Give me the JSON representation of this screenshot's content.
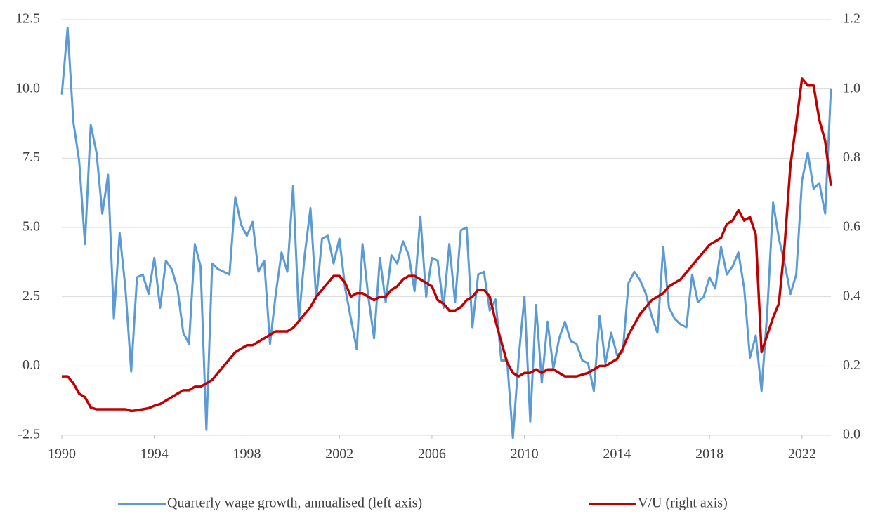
{
  "chart_data": {
    "type": "line",
    "x": [
      1990,
      1990.25,
      1990.5,
      1990.75,
      1991,
      1991.25,
      1991.5,
      1991.75,
      1992,
      1992.25,
      1992.5,
      1992.75,
      1993,
      1993.25,
      1993.5,
      1993.75,
      1994,
      1994.25,
      1994.5,
      1994.75,
      1995,
      1995.25,
      1995.5,
      1995.75,
      1996,
      1996.25,
      1996.5,
      1996.75,
      1997,
      1997.25,
      1997.5,
      1997.75,
      1998,
      1998.25,
      1998.5,
      1998.75,
      1999,
      1999.25,
      1999.5,
      1999.75,
      2000,
      2000.25,
      2000.5,
      2000.75,
      2001,
      2001.25,
      2001.5,
      2001.75,
      2002,
      2002.25,
      2002.5,
      2002.75,
      2003,
      2003.25,
      2003.5,
      2003.75,
      2004,
      2004.25,
      2004.5,
      2004.75,
      2005,
      2005.25,
      2005.5,
      2005.75,
      2006,
      2006.25,
      2006.5,
      2006.75,
      2007,
      2007.25,
      2007.5,
      2007.75,
      2008,
      2008.25,
      2008.5,
      2008.75,
      2009,
      2009.25,
      2009.5,
      2009.75,
      2010,
      2010.25,
      2010.5,
      2010.75,
      2011,
      2011.25,
      2011.5,
      2011.75,
      2012,
      2012.25,
      2012.5,
      2012.75,
      2013,
      2013.25,
      2013.5,
      2013.75,
      2014,
      2014.25,
      2014.5,
      2014.75,
      2015,
      2015.25,
      2015.5,
      2015.75,
      2016,
      2016.25,
      2016.5,
      2016.75,
      2017,
      2017.25,
      2017.5,
      2017.75,
      2018,
      2018.25,
      2018.5,
      2018.75,
      2019,
      2019.25,
      2019.5,
      2019.75,
      2020,
      2020.25,
      2020.5,
      2020.75,
      2021,
      2021.25,
      2021.5,
      2021.75,
      2022,
      2022.25,
      2022.5,
      2022.75,
      2023,
      2023.25
    ],
    "series": [
      {
        "name": "Quarterly wage growth, annualised (left axis)",
        "color": "#5b9bd5",
        "axis": "y",
        "values": [
          9.8,
          12.2,
          8.8,
          7.4,
          4.4,
          8.7,
          7.7,
          5.5,
          6.9,
          1.7,
          4.8,
          2.8,
          -0.2,
          3.2,
          3.3,
          2.6,
          3.9,
          2.1,
          3.8,
          3.5,
          2.8,
          1.2,
          0.8,
          4.4,
          3.6,
          -2.3,
          3.7,
          3.5,
          3.4,
          3.3,
          6.1,
          5.1,
          4.7,
          5.2,
          3.4,
          3.8,
          0.8,
          2.6,
          4.1,
          3.4,
          6.5,
          1.7,
          4.0,
          5.7,
          2.4,
          4.6,
          4.7,
          3.7,
          4.6,
          2.8,
          1.7,
          0.6,
          4.4,
          2.5,
          1.0,
          3.9,
          2.3,
          4.0,
          3.7,
          4.5,
          4.0,
          2.7,
          5.4,
          2.5,
          3.9,
          3.8,
          2.1,
          4.4,
          2.3,
          4.9,
          5.0,
          1.4,
          3.3,
          3.4,
          2.0,
          2.4,
          0.2,
          0.2,
          -2.6,
          0.3,
          2.5,
          -2.0,
          2.2,
          -0.6,
          1.6,
          -0.1,
          1.0,
          1.6,
          0.9,
          0.8,
          0.2,
          0.1,
          -0.9,
          1.8,
          0.1,
          1.2,
          0.4,
          0.5,
          3.0,
          3.4,
          3.1,
          2.6,
          1.8,
          1.2,
          4.3,
          2.1,
          1.7,
          1.5,
          1.4,
          3.3,
          2.3,
          2.5,
          3.2,
          2.8,
          4.3,
          3.3,
          3.6,
          4.1,
          2.8,
          0.3,
          1.1,
          -0.9,
          2.0,
          5.9,
          4.6,
          3.7,
          2.6,
          3.3,
          6.7,
          7.7,
          6.4,
          6.6,
          5.5,
          10.0
        ]
      },
      {
        "name": "V/U (right axis)",
        "color": "#c00000",
        "axis": "y2",
        "values": [
          0.17,
          0.17,
          0.15,
          0.12,
          0.11,
          0.08,
          0.075,
          0.075,
          0.075,
          0.075,
          0.075,
          0.075,
          0.07,
          0.072,
          0.075,
          0.078,
          0.085,
          0.09,
          0.1,
          0.11,
          0.12,
          0.13,
          0.13,
          0.14,
          0.14,
          0.15,
          0.16,
          0.18,
          0.2,
          0.22,
          0.24,
          0.25,
          0.26,
          0.26,
          0.27,
          0.28,
          0.29,
          0.3,
          0.3,
          0.3,
          0.31,
          0.33,
          0.35,
          0.37,
          0.4,
          0.42,
          0.44,
          0.46,
          0.46,
          0.44,
          0.4,
          0.41,
          0.41,
          0.4,
          0.39,
          0.4,
          0.4,
          0.42,
          0.43,
          0.45,
          0.46,
          0.46,
          0.45,
          0.44,
          0.43,
          0.39,
          0.38,
          0.36,
          0.36,
          0.37,
          0.39,
          0.4,
          0.42,
          0.42,
          0.4,
          0.33,
          0.27,
          0.21,
          0.18,
          0.17,
          0.18,
          0.18,
          0.19,
          0.18,
          0.19,
          0.19,
          0.18,
          0.17,
          0.17,
          0.17,
          0.175,
          0.18,
          0.19,
          0.2,
          0.2,
          0.21,
          0.22,
          0.25,
          0.29,
          0.32,
          0.35,
          0.37,
          0.39,
          0.4,
          0.41,
          0.43,
          0.44,
          0.45,
          0.47,
          0.49,
          0.51,
          0.53,
          0.55,
          0.56,
          0.57,
          0.61,
          0.62,
          0.65,
          0.62,
          0.63,
          0.58,
          0.24,
          0.29,
          0.34,
          0.38,
          0.55,
          0.78,
          0.9,
          1.03,
          1.01,
          1.01,
          0.91,
          0.85,
          0.72
        ]
      }
    ],
    "xlim": [
      1990,
      2023.25
    ],
    "xticks": [
      1990,
      1994,
      1998,
      2002,
      2006,
      2010,
      2014,
      2018,
      2022
    ],
    "ylim": [
      -2.5,
      12.5
    ],
    "yticks": [
      -2.5,
      {
        "value": 0,
        "label": "0.0"
      },
      2.5,
      {
        "value": 5,
        "label": "5.0"
      },
      7.5,
      {
        "value": 10,
        "label": "10.0"
      },
      12.5
    ],
    "y2lim": [
      0,
      1.2
    ],
    "y2ticks": [
      {
        "value": 0,
        "label": "0.0"
      },
      0.2,
      0.4,
      0.6,
      0.8,
      {
        "value": 1,
        "label": "1.0"
      },
      1.2
    ],
    "grid": true,
    "legend": "bottom"
  }
}
